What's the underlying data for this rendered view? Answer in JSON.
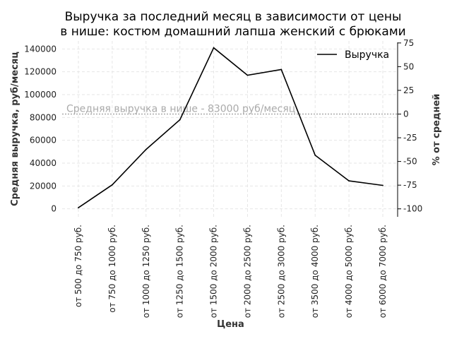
{
  "chart_data": {
    "type": "line",
    "title_lines": [
      "Выручка за последний месяц в зависимости от цены",
      "в нише: костюм домашний лапша женский с брюками"
    ],
    "xlabel": "Цена",
    "ylabel": "Средняя выручка, руб/месяц",
    "y2label": "% от средней",
    "categories": [
      "от 500 до 750 руб.",
      "от 750 до 1000 руб.",
      "от 1000 до 1250 руб.",
      "от 1250 до 1500 руб.",
      "от 1500 до 2000 руб.",
      "от 2000 до 2500 руб.",
      "от 2500 до 3000 руб.",
      "от 3500 до 4000 руб.",
      "от 4000 до 5000 руб.",
      "от 6000 до 7000 руб."
    ],
    "series": [
      {
        "name": "Выручка",
        "color": "#000000",
        "values": [
          1000,
          21000,
          52000,
          78000,
          141000,
          117000,
          122000,
          47000,
          24500,
          20500
        ]
      }
    ],
    "ylim": [
      -7000,
      147000
    ],
    "yticks": [
      0,
      20000,
      40000,
      60000,
      80000,
      100000,
      120000,
      140000
    ],
    "y2lim": [
      -108.4,
      77.1
    ],
    "y2ticks": [
      -100,
      -75,
      -50,
      -25,
      0,
      25,
      50,
      75
    ],
    "average": {
      "value": 83000,
      "label": "Средняя выручка в нише - 83000 руб/месяц",
      "color": "#aaaaaa"
    },
    "grid": true,
    "legend_position": "top-right"
  }
}
